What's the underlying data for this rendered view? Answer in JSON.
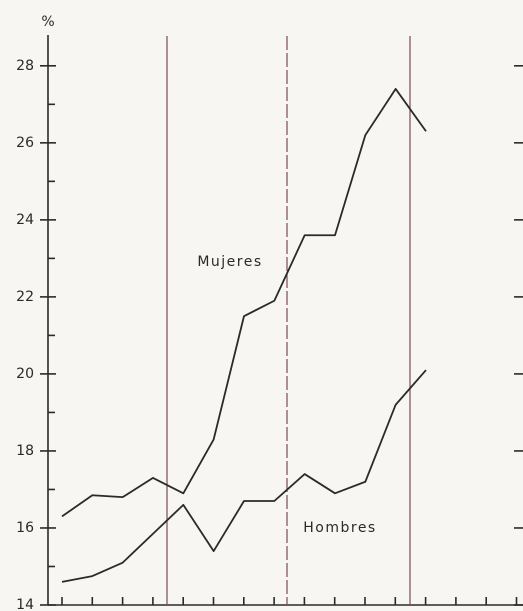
{
  "chart_data": {
    "type": "line",
    "y_unit": "%",
    "annotations": [
      "Mujeres",
      "Hombres"
    ],
    "categories": [
      null,
      null,
      null,
      null,
      null,
      null,
      null,
      null,
      null,
      null,
      null,
      null,
      null
    ],
    "series": [
      {
        "name": "Mujeres",
        "color": "#2a2a2a",
        "values": [
          16.3,
          16.85,
          16.8,
          17.3,
          16.9,
          18.3,
          21.5,
          21.9,
          23.6,
          23.6,
          26.2,
          27.4,
          26.3
        ]
      },
      {
        "name": "Hombres",
        "color": "#2a2a2a",
        "values": [
          14.6,
          14.75,
          15.1,
          15.85,
          16.6,
          15.4,
          16.7,
          16.7,
          17.4,
          16.9,
          17.2,
          19.2,
          20.1
        ]
      }
    ],
    "ylim": [
      14,
      28.8
    ],
    "yticks": [
      14,
      16,
      18,
      20,
      22,
      24,
      26,
      28
    ],
    "minor_yticks": [
      15,
      17,
      19,
      21,
      23,
      25,
      27
    ]
  }
}
